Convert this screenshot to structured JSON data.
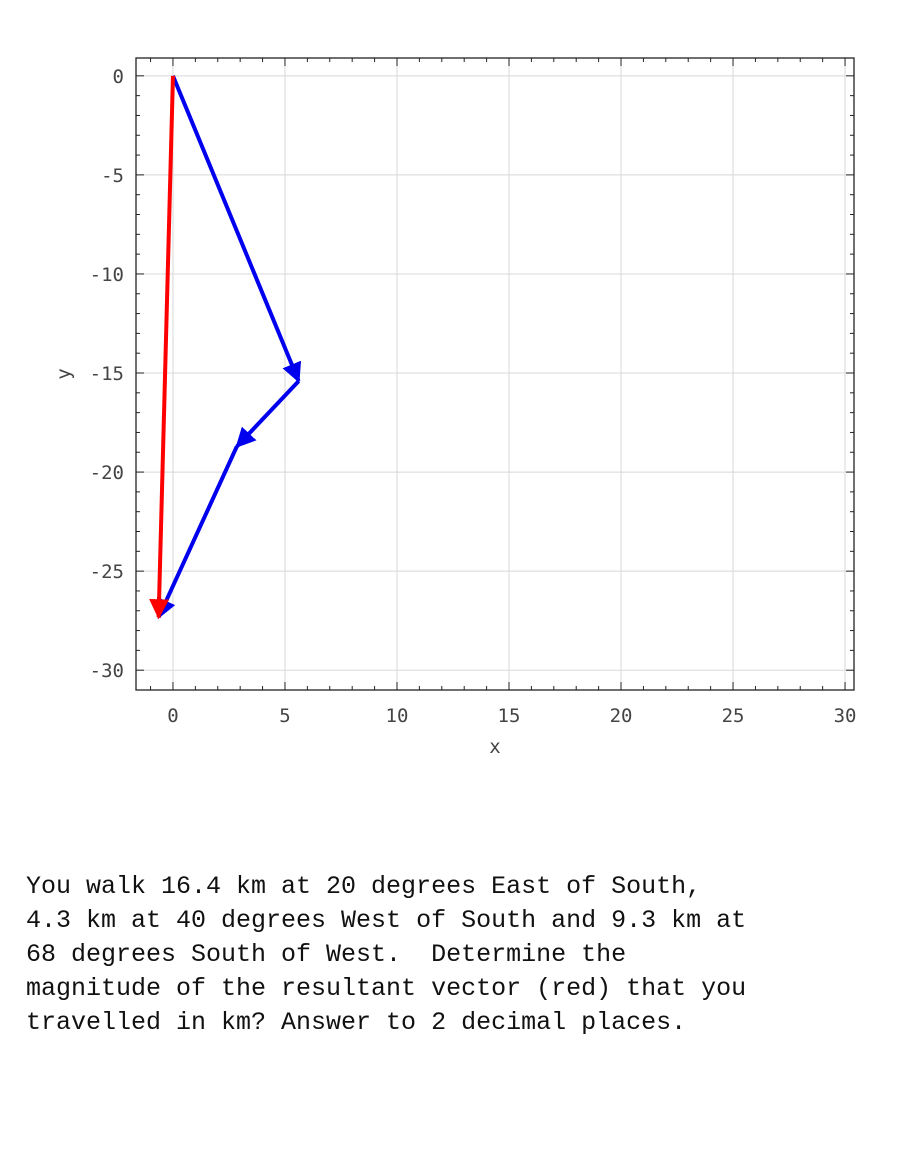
{
  "chart_data": {
    "type": "vector-diagram",
    "xlabel": "x",
    "ylabel": "y",
    "xlim": [
      -1.65,
      30.4
    ],
    "ylim": [
      -31.0,
      0.9
    ],
    "xticks": [
      0,
      5,
      10,
      15,
      20,
      25,
      30
    ],
    "yticks": [
      0,
      -5,
      -10,
      -15,
      -20,
      -25,
      -30
    ],
    "grid": true,
    "vectors": [
      {
        "from": [
          0,
          0
        ],
        "to": [
          5.61,
          -15.41
        ],
        "color": "#0000ee"
      },
      {
        "from": [
          5.61,
          -15.41
        ],
        "to": [
          2.85,
          -18.71
        ],
        "color": "#0000ee"
      },
      {
        "from": [
          2.85,
          -18.71
        ],
        "to": [
          -0.64,
          -27.33
        ],
        "color": "#0000ee"
      },
      {
        "from": [
          0,
          0
        ],
        "to": [
          -0.64,
          -27.33
        ],
        "color": "#ff0000"
      }
    ]
  },
  "question": "You walk 16.4 km at 20 degrees East of South,\n4.3 km at 40 degrees West of South and 9.3 km at\n68 degrees South of West.  Determine the\nmagnitude of the resultant vector (red) that you\ntravelled in km? Answer to 2 decimal places."
}
